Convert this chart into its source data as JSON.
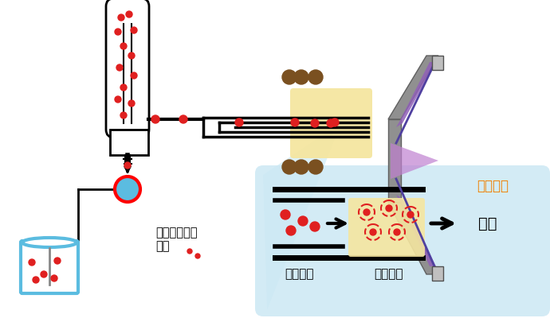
{
  "bg_color": "#ffffff",
  "light_blue_bg": "#cce8f4",
  "plasma_color": "#f5e6a0",
  "red_dot": "#e02020",
  "blue_fill": "#5bbce0",
  "brown_dot": "#7a5020",
  "purple_dark": "#5040a0",
  "purple_light": "#c080d0",
  "purple_mid": "#9060b8",
  "gray_color": "#909090",
  "gray_light": "#c0c0c0",
  "orange_text": "#f08000",
  "text_label1": "ナノ粒子状の",
  "text_label2": "元素",
  "text_plasma": "プラズマ",
  "text_nano": "ナノ粒子",
  "text_ionize": "イオン化",
  "text_detect": "検出"
}
